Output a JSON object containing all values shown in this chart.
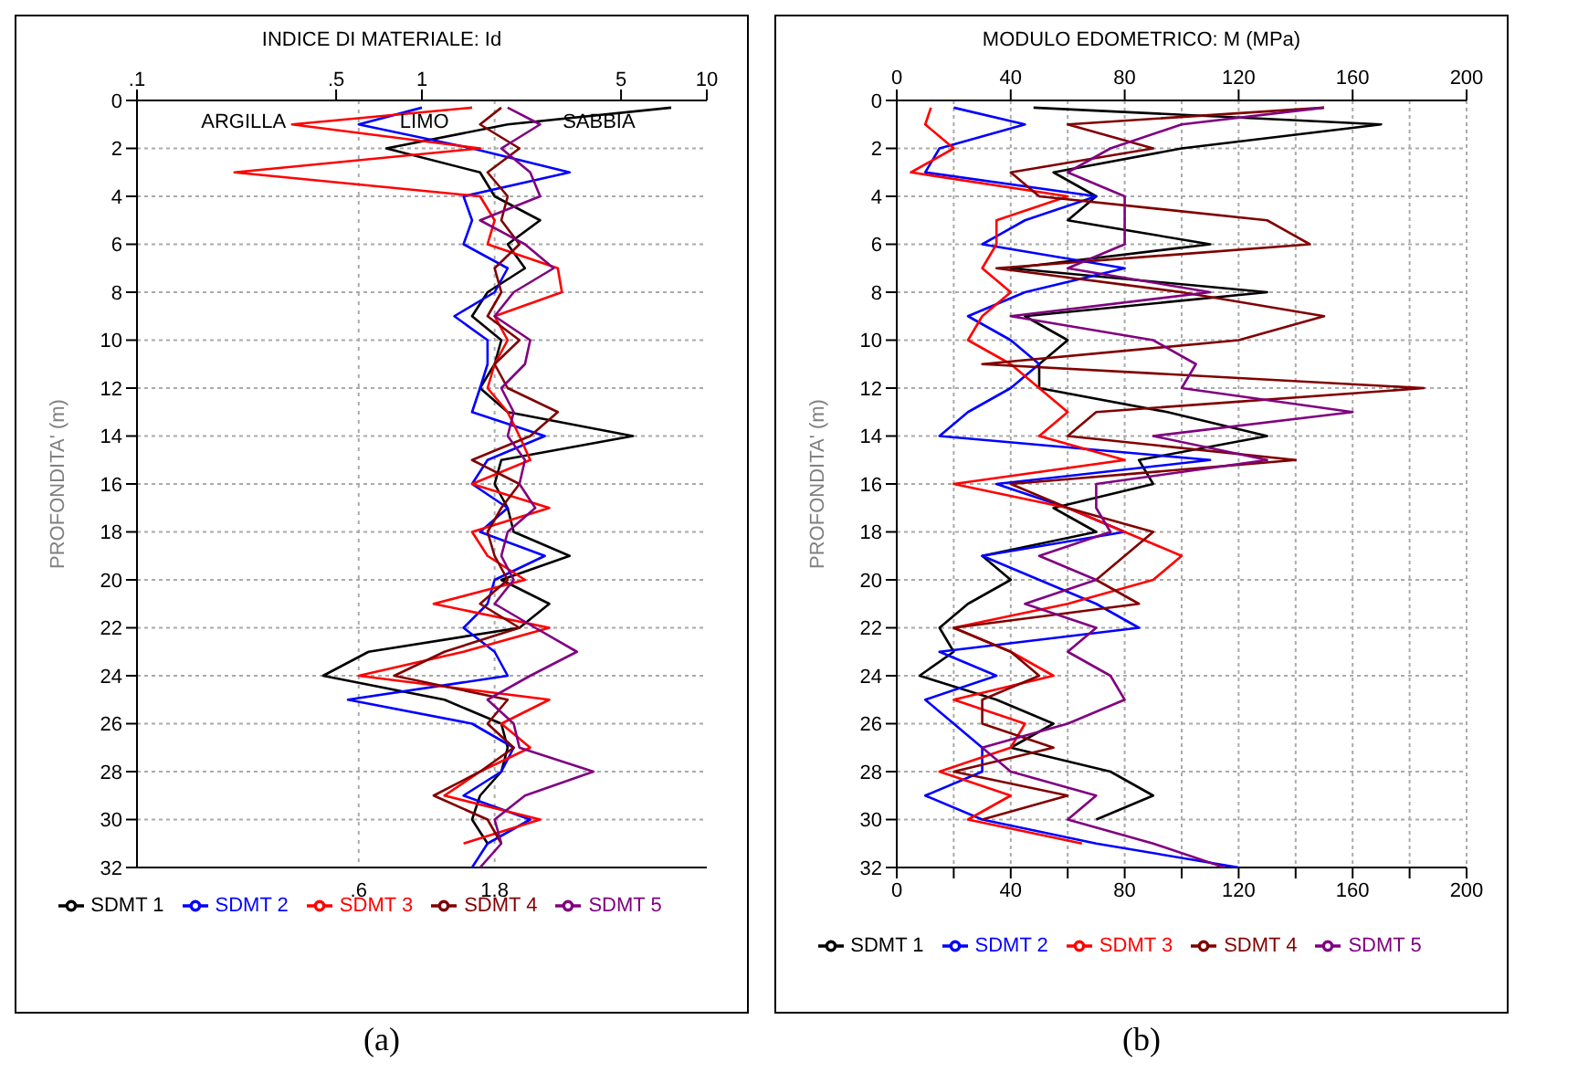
{
  "chart_data": [
    {
      "type": "line",
      "title": "INDICE DI MATERIALE: Id",
      "ylabel": "PROFONDITA' (m)",
      "log": "x",
      "xlim": [
        0.1,
        10
      ],
      "xticks": [
        {
          "value": 0.1,
          "label": ".1"
        },
        {
          "value": 0.5,
          "label": ".5"
        },
        1,
        5,
        10
      ],
      "ref_lines": [
        {
          "axis": "x",
          "value": 0.6,
          "label": ".6",
          "color": "#aaaaaa",
          "line_style": "dotted"
        },
        {
          "axis": "x",
          "value": 1.8,
          "label": "1.8",
          "color": "#aaaaaa",
          "line_style": "dotted"
        }
      ],
      "ylim": [
        32,
        0
      ],
      "yticks": [
        0,
        2,
        4,
        6,
        8,
        10,
        12,
        14,
        16,
        18,
        20,
        22,
        24,
        26,
        28,
        30,
        32
      ],
      "grid": "y",
      "legend": "bottom",
      "marker": "none",
      "line_style": "solid",
      "annotations": [
        "ARGILLA",
        "LIMO",
        "SABBIA",
        "(a)"
      ],
      "series": [
        {
          "name": "SDMT 1",
          "color": "#000000",
          "x": [
            7.5,
            2.0,
            0.75,
            1.6,
            1.8,
            2.6,
            2.0,
            2.3,
            1.7,
            1.5,
            1.9,
            1.8,
            1.6,
            2.0,
            5.5,
            1.9,
            1.8,
            2.0,
            2.1,
            3.3,
            1.9,
            2.8,
            2.2,
            0.65,
            0.45,
            1.2,
            1.9,
            2.0,
            1.9,
            1.6,
            1.5,
            1.7
          ],
          "values": [
            0.3,
            1,
            2,
            3,
            4,
            5,
            6,
            7,
            8,
            9,
            10,
            11,
            12,
            13,
            14,
            15,
            16,
            17,
            18,
            19,
            20,
            21,
            22,
            23,
            24,
            25,
            26,
            27,
            28,
            29,
            30,
            31
          ]
        },
        {
          "name": "SDMT 2",
          "color": "#0000ff",
          "x": [
            1.0,
            0.6,
            1.5,
            3.3,
            1.4,
            1.5,
            1.4,
            2.0,
            1.8,
            1.3,
            1.7,
            1.7,
            1.6,
            1.5,
            2.7,
            1.7,
            1.5,
            2.0,
            1.6,
            2.7,
            1.8,
            1.7,
            1.4,
            1.8,
            2.0,
            0.55,
            1.5,
            2.1,
            1.9,
            1.4,
            2.4,
            1.7,
            1.5
          ],
          "values": [
            0.3,
            1,
            2,
            3,
            4,
            5,
            6,
            7,
            8,
            9,
            10,
            11,
            12,
            13,
            14,
            15,
            16,
            17,
            18,
            19,
            20,
            21,
            22,
            23,
            24,
            25,
            26,
            27,
            28,
            29,
            30,
            31,
            32
          ]
        },
        {
          "name": "SDMT 3",
          "color": "#ff0000",
          "x": [
            1.5,
            0.35,
            1.6,
            0.22,
            1.6,
            1.8,
            1.7,
            3.0,
            3.1,
            1.8,
            2.0,
            1.8,
            1.7,
            2.0,
            2.2,
            2.4,
            1.5,
            2.8,
            1.5,
            1.7,
            2.3,
            1.1,
            2.8,
            1.4,
            0.6,
            2.8,
            1.9,
            2.4,
            1.6,
            1.2,
            2.6,
            1.4
          ],
          "values": [
            0.3,
            1,
            2,
            3,
            4,
            5,
            6,
            7,
            8,
            9,
            10,
            11,
            12,
            13,
            14,
            15,
            16,
            17,
            18,
            19,
            20,
            21,
            22,
            23,
            24,
            25,
            26,
            27,
            28,
            29,
            30,
            31
          ]
        },
        {
          "name": "SDMT 4",
          "color": "#800000",
          "x": [
            1.9,
            1.6,
            2.2,
            1.7,
            2.0,
            1.9,
            2.2,
            1.8,
            1.9,
            1.7,
            2.2,
            1.8,
            2.0,
            3.0,
            2.4,
            1.5,
            2.2,
            1.9,
            1.7,
            1.8,
            2.0,
            1.6,
            2.2,
            1.2,
            0.8,
            2.0,
            1.7,
            2.1,
            1.6,
            1.1,
            1.7,
            1.9
          ],
          "values": [
            0.3,
            1,
            2,
            3,
            4,
            5,
            6,
            7,
            8,
            9,
            10,
            11,
            12,
            13,
            14,
            15,
            16,
            17,
            18,
            19,
            20,
            21,
            22,
            23,
            24,
            25,
            26,
            27,
            28,
            29,
            30,
            31
          ]
        },
        {
          "name": "SDMT 5",
          "color": "#800080",
          "x": [
            2.0,
            2.6,
            1.9,
            2.4,
            2.6,
            1.6,
            2.3,
            2.9,
            2.1,
            1.8,
            2.4,
            2.3,
            1.9,
            2.1,
            2.0,
            2.3,
            2.2,
            2.5,
            2.0,
            1.9,
            2.1,
            1.8,
            2.5,
            3.5,
            2.4,
            1.7,
            2.1,
            2.2,
            4.0,
            2.3,
            1.8,
            1.9,
            1.6
          ],
          "values": [
            0.3,
            1,
            2,
            3,
            4,
            5,
            6,
            7,
            8,
            9,
            10,
            11,
            12,
            13,
            14,
            15,
            16,
            17,
            18,
            19,
            20,
            21,
            22,
            23,
            24,
            25,
            26,
            27,
            28,
            29,
            30,
            31,
            32
          ]
        }
      ]
    },
    {
      "type": "line",
      "title": "MODULO EDOMETRICO: M (MPa)",
      "ylabel": "PROFONDITA' (m)",
      "xlim": [
        0,
        200
      ],
      "xticks": [
        0,
        {
          "value": 20,
          "label": null
        },
        40,
        {
          "value": 60,
          "label": null
        },
        80,
        {
          "value": 100,
          "label": null
        },
        120,
        {
          "value": 140,
          "label": null
        },
        160,
        {
          "value": 180,
          "label": null
        },
        200
      ],
      "x2lim": [
        0,
        200
      ],
      "x2ticks": [
        0,
        40,
        80,
        120,
        160,
        200
      ],
      "ylim": [
        32,
        0
      ],
      "yticks": [
        0,
        2,
        4,
        6,
        8,
        10,
        12,
        14,
        16,
        18,
        20,
        22,
        24,
        26,
        28,
        30,
        32
      ],
      "grid": true,
      "legend": "bottom",
      "marker": "none",
      "line_style": "solid",
      "annotations": [
        "(b)"
      ],
      "series": [
        {
          "name": "SDMT 1",
          "color": "#000000",
          "x": [
            48,
            170,
            100,
            55,
            70,
            60,
            110,
            40,
            130,
            45,
            60,
            50,
            50,
            95,
            130,
            85,
            90,
            55,
            70,
            30,
            40,
            25,
            15,
            20,
            8,
            35,
            55,
            40,
            75,
            90,
            70
          ],
          "values": [
            0.3,
            1,
            2,
            3,
            4,
            5,
            6,
            7,
            8,
            9,
            10,
            11,
            12,
            13,
            14,
            15,
            16,
            17,
            18,
            19,
            20,
            21,
            22,
            23,
            24,
            25,
            26,
            27,
            28,
            29,
            30
          ]
        },
        {
          "name": "SDMT 2",
          "color": "#0000ff",
          "x": [
            20,
            45,
            15,
            10,
            70,
            45,
            30,
            80,
            45,
            25,
            40,
            50,
            40,
            25,
            15,
            110,
            35,
            60,
            80,
            30,
            50,
            70,
            85,
            15,
            35,
            10,
            20,
            30,
            30,
            10,
            30,
            70,
            120
          ],
          "values": [
            0.3,
            1,
            2,
            3,
            4,
            5,
            6,
            7,
            8,
            9,
            10,
            11,
            12,
            13,
            14,
            15,
            16,
            17,
            18,
            19,
            20,
            21,
            22,
            23,
            24,
            25,
            26,
            27,
            28,
            29,
            30,
            31,
            32
          ]
        },
        {
          "name": "SDMT 3",
          "color": "#ff0000",
          "x": [
            12,
            10,
            20,
            5,
            60,
            35,
            35,
            30,
            40,
            30,
            25,
            40,
            50,
            60,
            50,
            80,
            20,
            60,
            80,
            100,
            90,
            60,
            20,
            40,
            55,
            20,
            45,
            40,
            15,
            40,
            25,
            65
          ],
          "values": [
            0.3,
            1,
            2,
            3,
            4,
            5,
            6,
            7,
            8,
            9,
            10,
            11,
            12,
            13,
            14,
            15,
            16,
            17,
            18,
            19,
            20,
            21,
            22,
            23,
            24,
            25,
            26,
            27,
            28,
            29,
            30,
            31
          ]
        },
        {
          "name": "SDMT 4",
          "color": "#800000",
          "x": [
            150,
            60,
            90,
            40,
            50,
            130,
            145,
            35,
            100,
            150,
            120,
            30,
            185,
            70,
            60,
            140,
            40,
            60,
            90,
            80,
            70,
            85,
            20,
            40,
            50,
            30,
            30,
            55,
            20,
            60,
            30
          ],
          "values": [
            0.3,
            1,
            2,
            3,
            4,
            5,
            6,
            7,
            8,
            9,
            10,
            11,
            12,
            13,
            14,
            15,
            16,
            17,
            18,
            19,
            20,
            21,
            22,
            23,
            24,
            25,
            26,
            27,
            28,
            29,
            30
          ]
        },
        {
          "name": "SDMT 5",
          "color": "#800080",
          "x": [
            150,
            100,
            75,
            60,
            80,
            80,
            80,
            60,
            110,
            40,
            90,
            105,
            100,
            160,
            90,
            130,
            70,
            70,
            75,
            50,
            70,
            45,
            70,
            60,
            75,
            80,
            60,
            30,
            40,
            70,
            60,
            90,
            115
          ],
          "values": [
            0.3,
            1,
            2,
            3,
            4,
            5,
            6,
            7,
            8,
            9,
            10,
            11,
            12,
            13,
            14,
            15,
            16,
            17,
            18,
            19,
            20,
            21,
            22,
            23,
            24,
            25,
            26,
            27,
            28,
            29,
            30,
            31,
            32
          ]
        }
      ]
    }
  ]
}
